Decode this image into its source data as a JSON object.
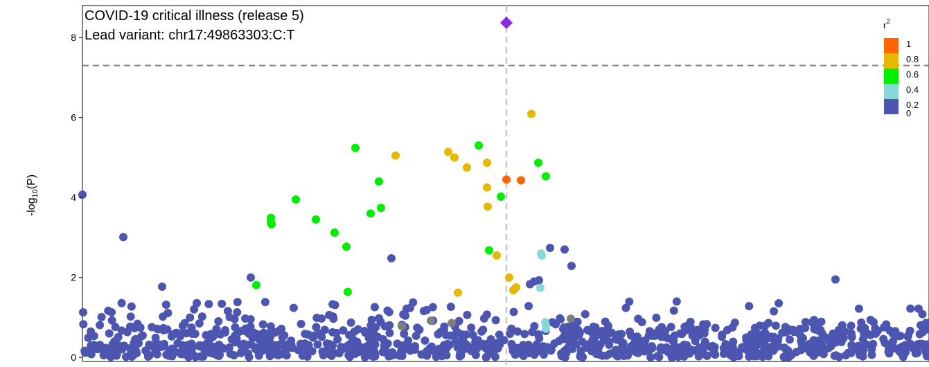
{
  "chart_data": {
    "type": "scatter",
    "title": "COVID-19 critical illness (release 5)",
    "subtitle": "Lead variant: chr17:49863303:C:T",
    "ylabel_main": "-log",
    "ylabel_sub": "10",
    "ylabel_tail": "(P)",
    "xlabel": "",
    "ylim": [
      -0.1,
      8.8
    ],
    "xlim": [
      0,
      1222
    ],
    "yticks": [
      0,
      2,
      4,
      6,
      8
    ],
    "genome_wide_line": 7.3,
    "lead_variant_x": 612,
    "grid": false,
    "legend": {
      "title_base": "r",
      "title_sup": "2",
      "placement": "top-right",
      "bins": [
        {
          "color": "#ff6600",
          "label": "1"
        },
        {
          "color": "#e6b800",
          "label": "0.8"
        },
        {
          "color": "#00ee00",
          "label": "0.6"
        },
        {
          "color": "#88d8d8",
          "label": "0.4"
        },
        {
          "color": "#4c56b0",
          "label": "0.2"
        }
      ],
      "bottom_label": "0"
    },
    "colors": {
      "r2_0_0.2": "#4c56b0",
      "r2_0.2_0.4": "#88d8d8",
      "r2_0.4_0.6": "#00ee00",
      "r2_0.6_0.8": "#e6b800",
      "r2_0.8_1": "#ff6600",
      "lead": "#8a2be2",
      "no_ld": "#7f7f7f"
    },
    "series": [
      {
        "r2_bin": "lead",
        "marker": "diamond",
        "x": [
          612
        ],
        "y": [
          8.37
        ]
      },
      {
        "r2_bin": "0.8-1",
        "x": [
          612,
          633
        ],
        "y": [
          4.45,
          4.43
        ]
      },
      {
        "r2_bin": "0.6-0.8",
        "x": [
          648,
          452,
          528,
          537,
          555,
          584,
          584,
          585,
          598,
          616,
          542,
          622,
          624,
          626
        ],
        "y": [
          6.09,
          5.05,
          5.14,
          5.0,
          4.75,
          4.87,
          4.25,
          3.77,
          2.55,
          2.0,
          1.62,
          1.68,
          1.72,
          1.75
        ],
        "note": "estimated positions"
      },
      {
        "r2_bin": "0.4-0.6",
        "x": [
          394,
          572,
          658,
          669,
          428,
          604,
          308,
          431,
          272,
          272,
          273,
          337,
          364,
          416,
          381,
          587,
          251,
          383
        ],
        "y": [
          5.24,
          5.3,
          4.87,
          4.53,
          4.4,
          4.02,
          3.95,
          3.74,
          3.49,
          3.38,
          3.33,
          3.45,
          3.12,
          3.6,
          2.77,
          2.68,
          1.81,
          1.64
        ]
      },
      {
        "r2_bin": "0.2-0.4",
        "x": [
          662,
          663,
          661,
          668,
          669,
          669
        ],
        "y": [
          2.6,
          2.55,
          1.74,
          0.88,
          0.8,
          0.72
        ]
      },
      {
        "r2_bin": "none",
        "x": [
          461,
          503,
          533,
          705
        ],
        "y": [
          0.78,
          0.92,
          0.86,
          0.97
        ]
      }
    ],
    "background": {
      "r2_bin": "0-0.2",
      "n_points": 1050,
      "notable": {
        "x": [
          0,
          59,
          446,
          675,
          696,
          706,
          646,
          652,
          659,
          243,
          115,
          1087,
          1,
          42
        ],
        "y": [
          4.07,
          3.01,
          2.48,
          2.74,
          2.7,
          2.29,
          1.83,
          1.9,
          1.93,
          2.0,
          1.77,
          1.95,
          1.13,
          1.13
        ]
      }
    }
  }
}
